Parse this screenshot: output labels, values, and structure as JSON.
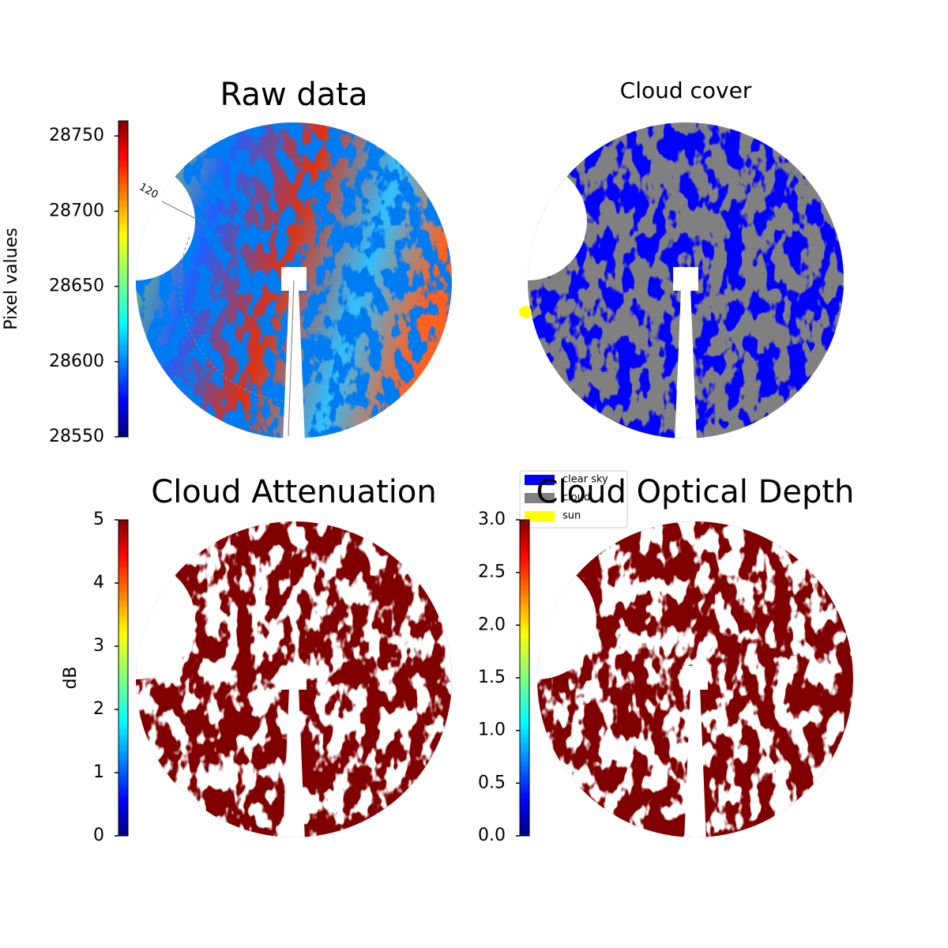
{
  "chart_data": [
    {
      "type": "image",
      "title": "Raw data",
      "colorbar_label": "Pixel values",
      "colormap": "jet",
      "ylim": [
        28550,
        28760
      ],
      "yticks": [
        28550,
        28600,
        28650,
        28700,
        28750
      ],
      "annotations": [
        "120"
      ]
    },
    {
      "type": "classes",
      "title": "Cloud cover",
      "legend": [
        {
          "name": "clear sky",
          "color": "#0000ff"
        },
        {
          "name": "cloud",
          "color": "#808080"
        },
        {
          "name": "sun",
          "color": "#ffff00"
        }
      ]
    },
    {
      "type": "image",
      "title": "Cloud Attenuation",
      "colorbar_label": "dB",
      "colormap": "jet",
      "ylim": [
        0,
        5
      ],
      "yticks": [
        0,
        1,
        2,
        3,
        4,
        5
      ]
    },
    {
      "type": "image",
      "title": "Cloud Optical Depth",
      "colormap": "jet",
      "ylim": [
        0,
        3
      ],
      "yticks": [
        {
          "value": 0,
          "label": "0.0"
        },
        0.5,
        {
          "value": 1,
          "label": "1.0"
        },
        1.5,
        {
          "value": 2,
          "label": "2.0"
        },
        2.5,
        {
          "value": 3,
          "label": "3.0"
        }
      ]
    }
  ]
}
